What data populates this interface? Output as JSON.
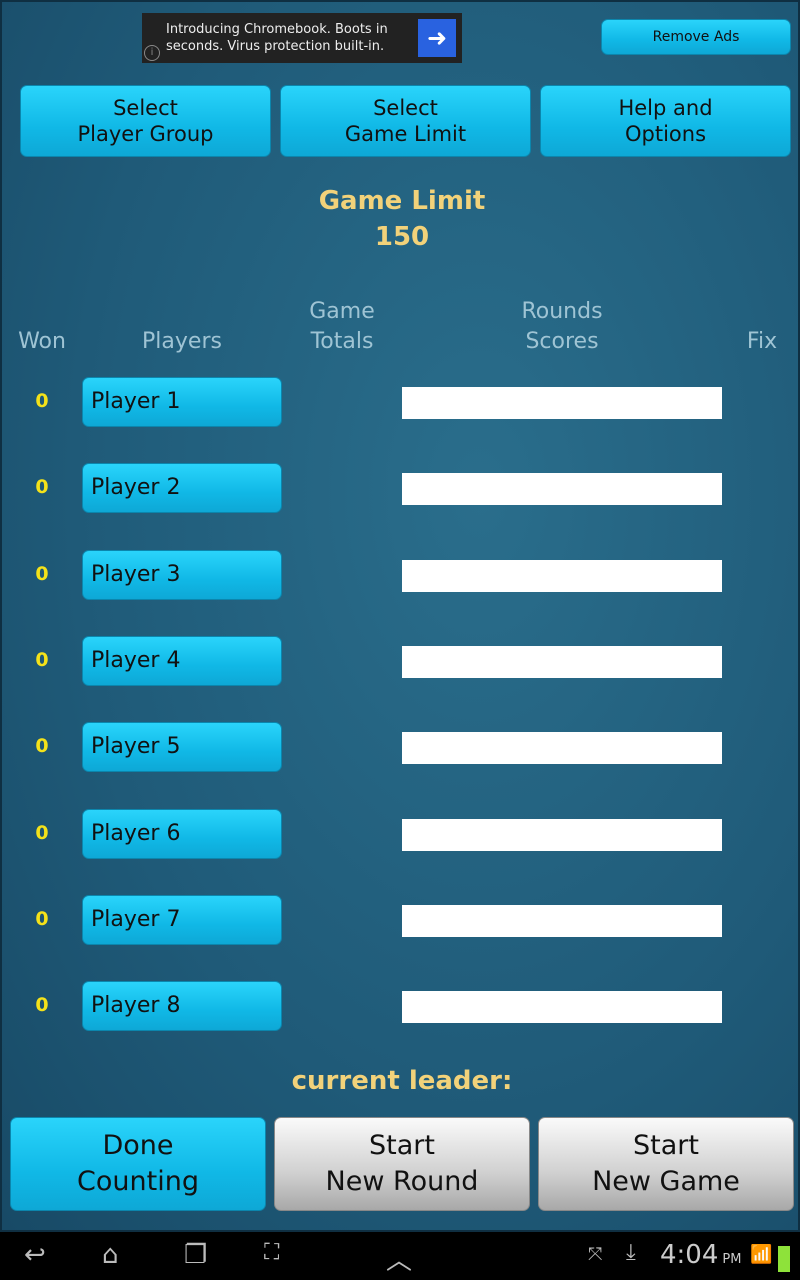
{
  "ad": {
    "text_line1": "Introducing Chromebook. Boots in",
    "text_line2": "seconds. Virus protection built-in.",
    "arrow_icon": "arrow-right-icon",
    "info_icon": "info-icon"
  },
  "remove_ads": "Remove Ads",
  "top_buttons": [
    {
      "line1": "Select",
      "line2": "Player Group"
    },
    {
      "line1": "Select",
      "line2": "Game Limit"
    },
    {
      "line1": "Help and",
      "line2": "Options"
    }
  ],
  "game_limit": {
    "label": "Game Limit",
    "value": "150"
  },
  "headers": {
    "won": "Won",
    "players": "Players",
    "totals_line1": "Game",
    "totals_line2": "Totals",
    "rounds_line1": "Rounds",
    "rounds_line2": "Scores",
    "fix": "Fix"
  },
  "players": [
    {
      "won": "0",
      "name": "Player 1"
    },
    {
      "won": "0",
      "name": "Player 2"
    },
    {
      "won": "0",
      "name": "Player 3"
    },
    {
      "won": "0",
      "name": "Player 4"
    },
    {
      "won": "0",
      "name": "Player 5"
    },
    {
      "won": "0",
      "name": "Player 6"
    },
    {
      "won": "0",
      "name": "Player 7"
    },
    {
      "won": "0",
      "name": "Player 8"
    }
  ],
  "current_leader": "current leader:",
  "bottom_buttons": [
    {
      "line1": "Done",
      "line2": "Counting"
    },
    {
      "line1": "Start",
      "line2": "New Round"
    },
    {
      "line1": "Start",
      "line2": "New Game"
    }
  ],
  "status_bar": {
    "time": "4:04",
    "ampm": "PM"
  },
  "colors": {
    "button": "#19c3ef",
    "background": "#1f5a78",
    "won": "#f4e21a",
    "gold_text": "#f2d27a"
  }
}
